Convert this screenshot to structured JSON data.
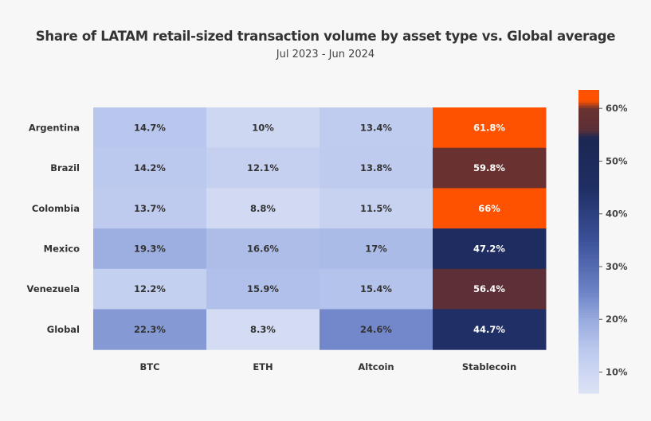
{
  "chart_data": {
    "type": "heatmap",
    "title": "Share of LATAM retail-sized transaction volume by asset type vs. Global average",
    "subtitle": "Jul 2023 - Jun 2024",
    "columns": [
      "BTC",
      "ETH",
      "Altcoin",
      "Stablecoin"
    ],
    "rows": [
      "Argentina",
      "Brazil",
      "Colombia",
      "Mexico",
      "Venezuela",
      "Global"
    ],
    "values": [
      [
        14.7,
        10,
        13.4,
        61.8
      ],
      [
        14.2,
        12.1,
        13.8,
        59.8
      ],
      [
        13.7,
        8.8,
        11.5,
        66
      ],
      [
        19.3,
        16.6,
        17,
        47.2
      ],
      [
        12.2,
        15.9,
        15.4,
        56.4
      ],
      [
        22.3,
        8.3,
        24.6,
        44.7
      ]
    ],
    "labels": [
      [
        "14.7%",
        "10%",
        "13.4%",
        "61.8%"
      ],
      [
        "14.2%",
        "12.1%",
        "13.8%",
        "59.8%"
      ],
      [
        "13.7%",
        "8.8%",
        "11.5%",
        "66%"
      ],
      [
        "19.3%",
        "16.6%",
        "17%",
        "47.2%"
      ],
      [
        "12.2%",
        "15.9%",
        "15.4%",
        "56.4%"
      ],
      [
        "22.3%",
        "8.3%",
        "24.6%",
        "44.7%"
      ]
    ],
    "colorbar": {
      "range": [
        6,
        63.5
      ],
      "ticks": [
        10,
        20,
        30,
        40,
        50,
        60
      ],
      "tick_labels": [
        "10%",
        "20%",
        "30%",
        "40%",
        "50%",
        "60%"
      ],
      "colors": {
        "low": "#dde3f5",
        "mid": "#6f85c8",
        "dark": "#1c2752",
        "brown": "#5c3038",
        "high": "#ff5200"
      }
    }
  }
}
